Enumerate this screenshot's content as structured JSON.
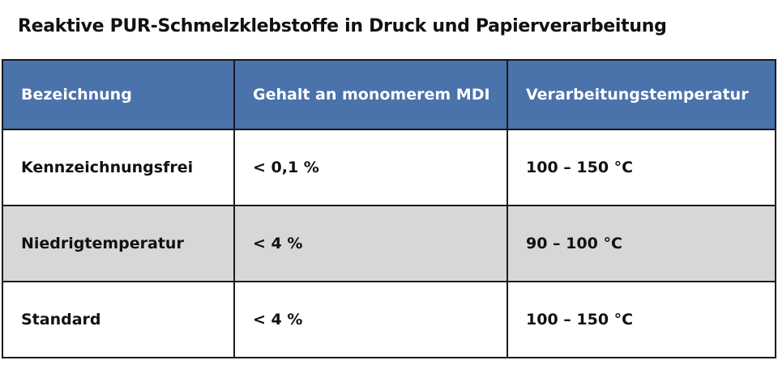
{
  "title": "Reaktive PUR-Schmelzklebstoffe in Druck und Papierverarbeitung",
  "colors": {
    "header_bg": "#4a72ab",
    "header_text": "#ffffff",
    "row_alt_bg": "#d8d6d7",
    "border": "#1a1a1a"
  },
  "table": {
    "headers": [
      "Bezeichnung",
      "Gehalt an monomerem MDI",
      "Verarbeitungstemperatur"
    ],
    "rows": [
      [
        "Kennzeichnungsfrei",
        "< 0,1 %",
        "100 – 150 °C"
      ],
      [
        "Niedrigtemperatur",
        "< 4 %",
        "90 – 100 °C"
      ],
      [
        "Standard",
        "< 4 %",
        "100 – 150 °C"
      ]
    ]
  }
}
